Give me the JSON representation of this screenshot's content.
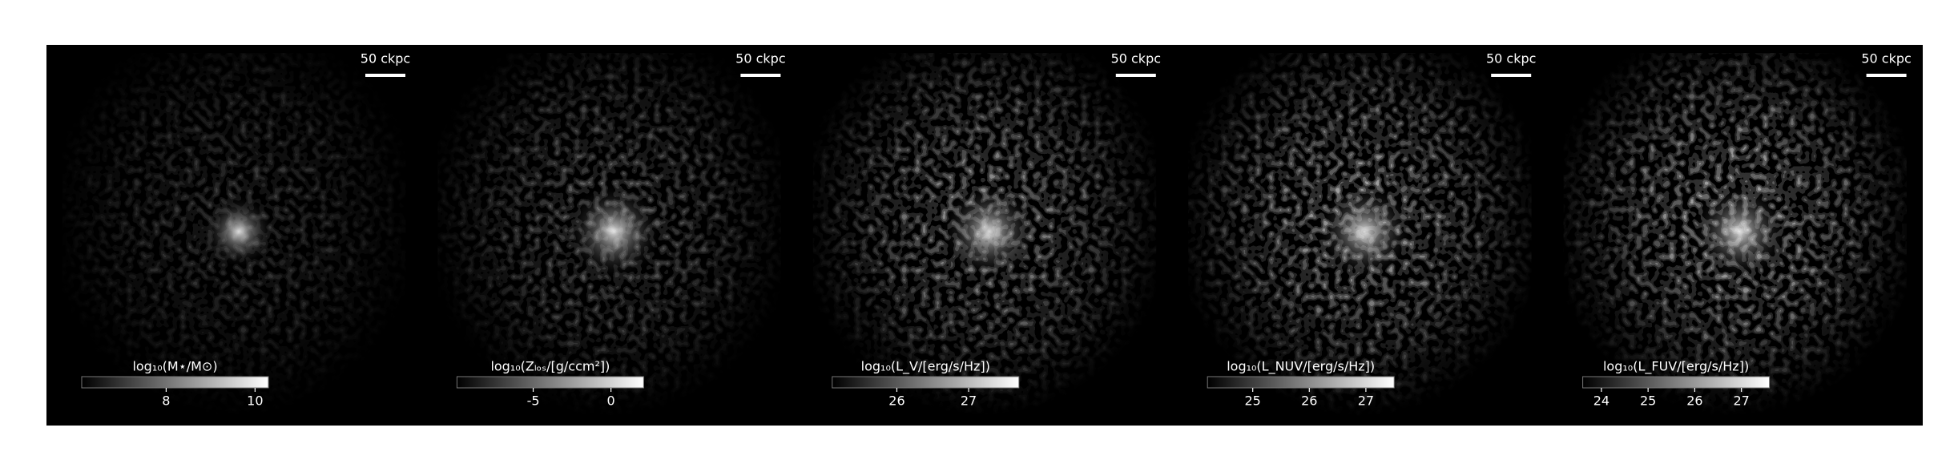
{
  "panels": [
    {
      "scale_label": "50 ckpc",
      "colorbar": {
        "label": "log₁₀(M⋆/M⊙)",
        "lim": [
          6.1,
          10.3
        ],
        "ticks": [
          8,
          10
        ]
      }
    },
    {
      "scale_label": "50 ckpc",
      "colorbar": {
        "label": "log₁₀(Zₗₒₛ/[g/ccm²])",
        "lim": [
          -9.9,
          2.1
        ],
        "ticks": [
          -5,
          0
        ]
      }
    },
    {
      "scale_label": "50 ckpc",
      "colorbar": {
        "label": "log₁₀(L_V/[erg/s/Hz])",
        "lim": [
          25.1,
          27.7
        ],
        "ticks": [
          26,
          27
        ]
      }
    },
    {
      "scale_label": "50 ckpc",
      "colorbar": {
        "label": "log₁₀(L_NUV/[erg/s/Hz])",
        "lim": [
          24.2,
          27.5
        ],
        "ticks": [
          25,
          26,
          27
        ]
      }
    },
    {
      "scale_label": "50 ckpc",
      "colorbar": {
        "label": "log₁₀(L_FUV/[erg/s/Hz])",
        "lim": [
          23.6,
          27.6
        ],
        "ticks": [
          24,
          25,
          26,
          27
        ]
      }
    }
  ]
}
